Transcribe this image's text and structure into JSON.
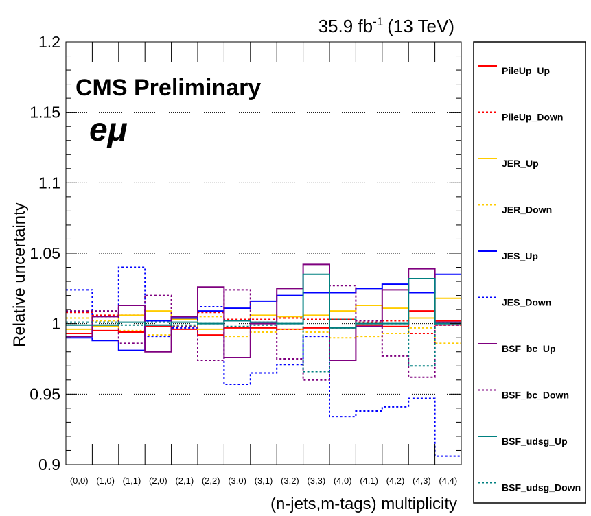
{
  "header": {
    "lumi_value": "35.9 fb",
    "lumi_exp": "-1",
    "energy": "(13 TeV)"
  },
  "labels": {
    "experiment": "CMS Preliminary",
    "channel": "eμ"
  },
  "chart_data": {
    "type": "line",
    "style": "step histogram",
    "xlabel": "(n-jets,m-tags) multiplicity",
    "ylabel": "Relative uncertainty",
    "ylim": [
      0.9,
      1.2
    ],
    "yticks": [
      0.9,
      0.95,
      1.0,
      1.05,
      1.1,
      1.15,
      1.2
    ],
    "ytick_labels": [
      "0.9",
      "0.95",
      "1",
      "1.05",
      "1.1",
      "1.15",
      "1.2"
    ],
    "grid": "horizontal dotted",
    "legend_position": "right",
    "categories": [
      "(0,0)",
      "(1,0)",
      "(1,1)",
      "(2,0)",
      "(2,1)",
      "(2,2)",
      "(3,0)",
      "(3,1)",
      "(3,2)",
      "(3,3)",
      "(4,0)",
      "(4,1)",
      "(4,2)",
      "(4,3)",
      "(4,4)"
    ],
    "series": [
      {
        "name": "PileUp_Up",
        "color": "#ff0000",
        "dash": "solid",
        "values": [
          0.993,
          0.995,
          0.994,
          0.998,
          0.996,
          0.992,
          0.997,
          0.997,
          0.996,
          0.997,
          1.003,
          0.999,
          0.998,
          1.009,
          1.002
        ]
      },
      {
        "name": "PileUp_Down",
        "color": "#ff0000",
        "dash": "dotted",
        "values": [
          1.008,
          1.006,
          1.006,
          1.002,
          1.004,
          1.008,
          1.003,
          1.003,
          1.004,
          1.003,
          0.997,
          1.001,
          1.002,
          0.993,
          0.999
        ]
      },
      {
        "name": "JER_Up",
        "color": "#ffcc00",
        "dash": "solid",
        "values": [
          0.996,
          0.998,
          1.006,
          1.009,
          1.003,
          0.996,
          1.002,
          1.006,
          1.005,
          1.006,
          1.009,
          1.013,
          1.011,
          1.004,
          1.018
        ]
      },
      {
        "name": "JER_Down",
        "color": "#ffcc00",
        "dash": "dotted",
        "values": [
          1.004,
          1.002,
          0.995,
          0.992,
          0.998,
          1.005,
          0.991,
          0.994,
          0.996,
          0.994,
          0.99,
          0.991,
          0.993,
          0.997,
          0.986
        ]
      },
      {
        "name": "JES_Up",
        "color": "#0000ff",
        "dash": "solid",
        "values": [
          0.99,
          0.988,
          0.981,
          1.002,
          1.004,
          1.009,
          1.011,
          1.016,
          1.02,
          1.022,
          1.022,
          1.025,
          1.028,
          1.022,
          1.035
        ]
      },
      {
        "name": "JES_Down",
        "color": "#0000ff",
        "dash": "dotted",
        "values": [
          1.024,
          1.005,
          1.04,
          0.991,
          0.997,
          1.012,
          0.957,
          0.965,
          0.971,
          0.991,
          0.934,
          0.938,
          0.941,
          0.947,
          0.906
        ]
      },
      {
        "name": "BSF_bc_Up",
        "color": "#7f007f",
        "dash": "solid",
        "values": [
          0.991,
          1.005,
          1.013,
          0.98,
          1.005,
          1.026,
          0.976,
          1.0,
          1.025,
          1.042,
          0.974,
          0.998,
          1.024,
          1.039,
          1.001
        ]
      },
      {
        "name": "BSF_bc_Down",
        "color": "#7f007f",
        "dash": "dotted",
        "values": [
          1.009,
          1.009,
          0.986,
          1.02,
          0.998,
          0.974,
          1.024,
          1.001,
          0.975,
          0.96,
          1.027,
          1.002,
          0.977,
          0.962,
          0.999
        ]
      },
      {
        "name": "BSF_udsg_Up",
        "color": "#008080",
        "dash": "solid",
        "values": [
          0.999,
          0.999,
          1.001,
          0.999,
          1.001,
          1.0,
          1.002,
          1.001,
          1.0,
          1.035,
          0.997,
          1.0,
          1.0,
          1.032,
          1.0
        ]
      },
      {
        "name": "BSF_udsg_Down",
        "color": "#008080",
        "dash": "dotted",
        "values": [
          1.001,
          1.001,
          0.999,
          1.001,
          0.999,
          1.0,
          0.998,
          0.999,
          1.0,
          0.966,
          1.003,
          1.0,
          1.0,
          0.97,
          1.0
        ]
      }
    ]
  }
}
